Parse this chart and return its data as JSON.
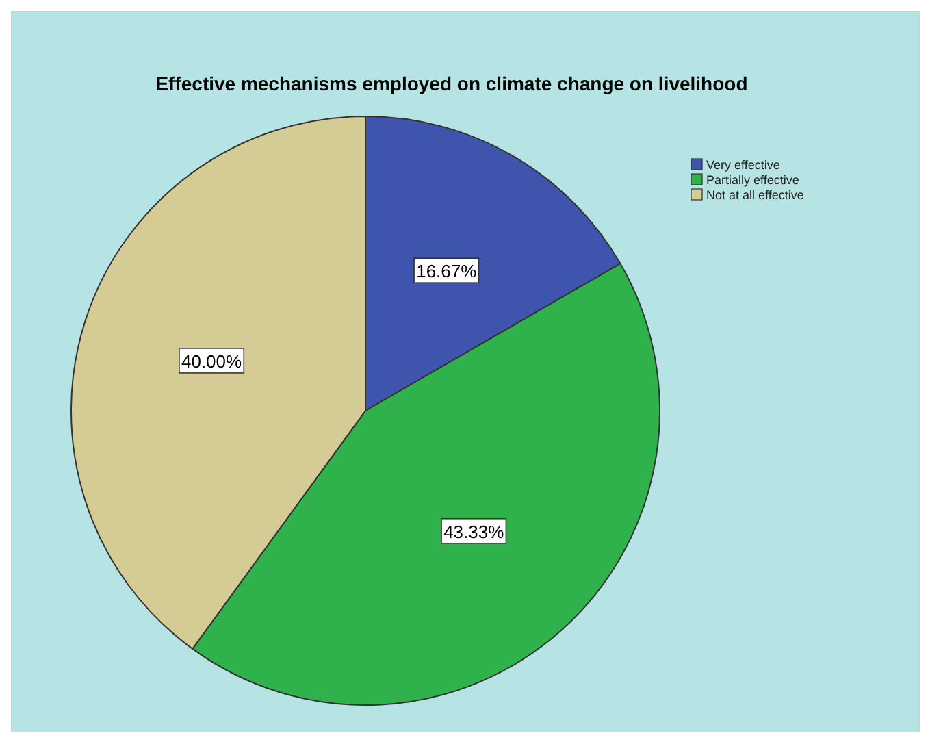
{
  "chart_data": {
    "type": "pie",
    "title": "Effective mechanisms employed on climate change on livelihood",
    "categories": [
      "Very effective",
      "Partially effective",
      "Not at all effective"
    ],
    "values": [
      16.67,
      43.33,
      40.0
    ],
    "value_labels": [
      "16.67%",
      "43.33%",
      "40.00%"
    ],
    "colors": [
      "#3f55ad",
      "#2fb24b",
      "#d5cb95"
    ],
    "legend": "top right"
  }
}
